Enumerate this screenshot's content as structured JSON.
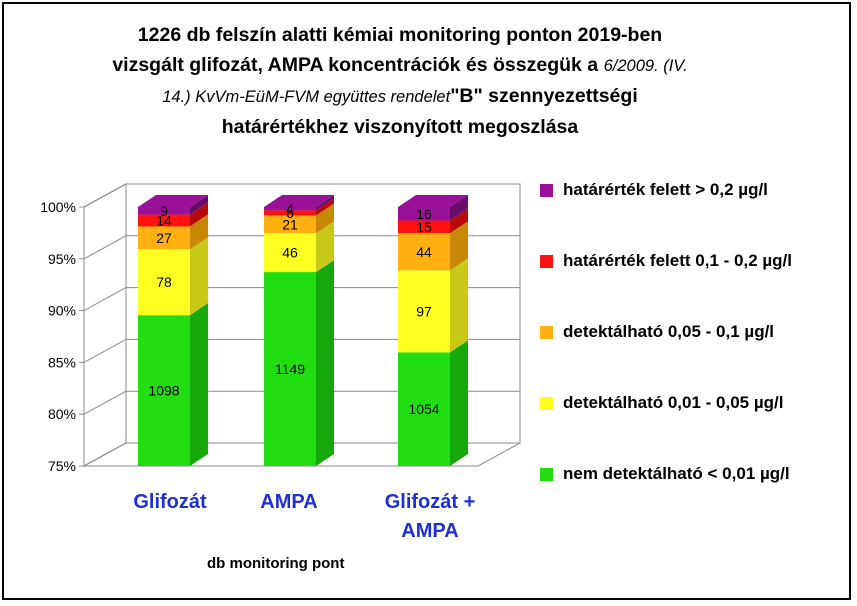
{
  "title": {
    "line1": "1226 db felszín alatti kémiai monitoring ponton 2019-ben",
    "line2a": "vizsgált glifozát, AMPA koncentrációk és összegük a ",
    "line2b": "6/2009. (IV.",
    "line3a": "14.) KvVm-EüM-FVM együttes rendelet",
    "line3b": "\"B\" szennyezettségi",
    "line4": "határértékhez viszonyított megoszlása"
  },
  "chart_data": {
    "type": "bar",
    "stacked": "100%",
    "three_d": true,
    "categories": [
      "Glifozát",
      "AMPA",
      "Glifozát + AMPA"
    ],
    "xlabel": "db monitoring pont",
    "ylim": [
      0.75,
      1.0
    ],
    "yticks": [
      "75%",
      "80%",
      "85%",
      "90%",
      "95%",
      "100%"
    ],
    "legend_position": "right",
    "series": [
      {
        "name": "nem detektálható  < 0,01 µg/l",
        "color": "#22dd11",
        "side": "#14a80a",
        "values": [
          1098,
          1149,
          1054
        ]
      },
      {
        "name": "detektálható 0,01 - 0,05 µg/l",
        "color": "#ffff22",
        "side": "#c8c817",
        "values": [
          78,
          46,
          97
        ]
      },
      {
        "name": "detektálható 0,05 - 0,1 µg/l",
        "color": "#ffb111",
        "side": "#c98708",
        "values": [
          27,
          21,
          44
        ]
      },
      {
        "name": "határérték felett 0,1 - 0,2 µg/l",
        "color": "#ff1111",
        "side": "#b80a0a",
        "values": [
          14,
          6,
          15
        ]
      },
      {
        "name": "határérték felett > 0,2 µg/l",
        "color": "#991199",
        "side": "#6a0c6a",
        "values": [
          9,
          4,
          16
        ]
      }
    ],
    "legend_order_top_to_bottom": [
      4,
      3,
      2,
      1,
      0
    ]
  }
}
